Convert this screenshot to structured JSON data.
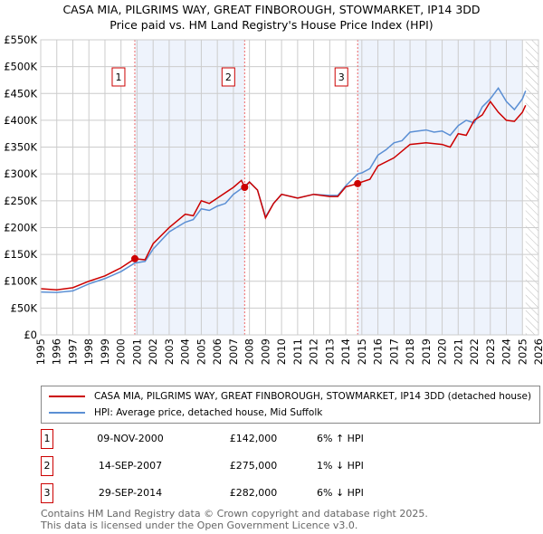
{
  "chart_data": {
    "type": "line",
    "title": "CASA MIA, PILGRIMS WAY, GREAT FINBOROUGH, STOWMARKET, IP14 3DD",
    "subtitle": "Price paid vs. HM Land Registry's House Price Index (HPI)",
    "xlim": [
      1995,
      2026
    ],
    "ylim": [
      0,
      550000
    ],
    "x_ticks": [
      "1995",
      "1996",
      "1997",
      "1998",
      "1999",
      "2000",
      "2001",
      "2002",
      "2003",
      "2004",
      "2005",
      "2006",
      "2007",
      "2008",
      "2009",
      "2010",
      "2011",
      "2012",
      "2013",
      "2014",
      "2015",
      "2016",
      "2017",
      "2018",
      "2019",
      "2020",
      "2021",
      "2022",
      "2023",
      "2024",
      "2025",
      "2026"
    ],
    "y_ticks": [
      {
        "v": 0,
        "l": "£0"
      },
      {
        "v": 50000,
        "l": "£50K"
      },
      {
        "v": 100000,
        "l": "£100K"
      },
      {
        "v": 150000,
        "l": "£150K"
      },
      {
        "v": 200000,
        "l": "£200K"
      },
      {
        "v": 250000,
        "l": "£250K"
      },
      {
        "v": 300000,
        "l": "£300K"
      },
      {
        "v": 350000,
        "l": "£350K"
      },
      {
        "v": 400000,
        "l": "£400K"
      },
      {
        "v": 450000,
        "l": "£450K"
      },
      {
        "v": 500000,
        "l": "£500K"
      },
      {
        "v": 550000,
        "l": "£550K"
      }
    ],
    "grid": true,
    "shaded_ranges": [
      [
        2000.86,
        2007.7
      ],
      [
        2014.74,
        2025.0
      ]
    ],
    "hatched_from": 2025.2,
    "series": [
      {
        "name": "CASA MIA, PILGRIMS WAY, GREAT FINBOROUGH, STOWMARKET, IP14 3DD (detached house)",
        "color": "#cc0000",
        "x": [
          1995,
          1996,
          1997,
          1998,
          1999,
          2000,
          2000.86,
          2001.5,
          2002,
          2003,
          2004,
          2004.5,
          2005,
          2005.5,
          2006,
          2007,
          2007.5,
          2007.7,
          2008,
          2008.5,
          2009,
          2009.5,
          2010,
          2011,
          2012,
          2013,
          2013.5,
          2014,
          2014.74,
          2015,
          2015.5,
          2016,
          2017,
          2018,
          2019,
          2020,
          2020.5,
          2021,
          2021.5,
          2022,
          2022.5,
          2023,
          2023.5,
          2024,
          2024.5,
          2025,
          2025.2
        ],
        "y": [
          86000,
          84000,
          88000,
          100000,
          110000,
          125000,
          142000,
          140000,
          170000,
          200000,
          225000,
          222000,
          250000,
          245000,
          255000,
          275000,
          288000,
          275000,
          285000,
          270000,
          218000,
          245000,
          262000,
          255000,
          262000,
          258000,
          258000,
          276000,
          282000,
          285000,
          290000,
          315000,
          330000,
          355000,
          358000,
          355000,
          350000,
          375000,
          372000,
          400000,
          410000,
          435000,
          415000,
          400000,
          398000,
          415000,
          428000
        ]
      },
      {
        "name": "HPI: Average price, detached house, Mid Suffolk",
        "color": "#5b8fd4",
        "x": [
          1995,
          1996,
          1997,
          1998,
          1999,
          2000,
          2000.86,
          2001.5,
          2002,
          2003,
          2004,
          2004.5,
          2005,
          2005.5,
          2006,
          2006.5,
          2007,
          2007.7,
          2008,
          2008.5,
          2009,
          2009.5,
          2010,
          2011,
          2012,
          2013,
          2013.5,
          2014,
          2014.74,
          2015,
          2015.5,
          2016,
          2016.5,
          2017,
          2017.5,
          2018,
          2018.5,
          2019,
          2019.5,
          2020,
          2020.5,
          2021,
          2021.5,
          2022,
          2022.5,
          2023,
          2023.5,
          2024,
          2024.5,
          2025,
          2025.2
        ],
        "y": [
          80000,
          79000,
          82000,
          95000,
          105000,
          118000,
          134000,
          137000,
          160000,
          192000,
          210000,
          215000,
          235000,
          232000,
          240000,
          245000,
          262000,
          277000,
          285000,
          270000,
          220000,
          245000,
          262000,
          255000,
          262000,
          260000,
          260000,
          278000,
          300000,
          302000,
          310000,
          335000,
          345000,
          358000,
          362000,
          378000,
          380000,
          382000,
          378000,
          380000,
          372000,
          390000,
          400000,
          395000,
          425000,
          440000,
          460000,
          435000,
          420000,
          440000,
          455000
        ]
      }
    ],
    "sales": [
      {
        "n": "1",
        "x": 2000.86,
        "y": 142000
      },
      {
        "n": "2",
        "x": 2007.7,
        "y": 275000
      },
      {
        "n": "3",
        "x": 2014.74,
        "y": 282000
      }
    ]
  },
  "legend": {
    "red": "CASA MIA, PILGRIMS WAY, GREAT FINBOROUGH, STOWMARKET, IP14 3DD (detached house)",
    "blue": "HPI: Average price, detached house, Mid Suffolk"
  },
  "transactions": [
    {
      "n": "1",
      "date": "09-NOV-2000",
      "price": "£142,000",
      "hpi": "6% ↑ HPI"
    },
    {
      "n": "2",
      "date": "14-SEP-2007",
      "price": "£275,000",
      "hpi": "1% ↓ HPI"
    },
    {
      "n": "3",
      "date": "29-SEP-2014",
      "price": "£282,000",
      "hpi": "6% ↓ HPI"
    }
  ],
  "footer": {
    "line1": "Contains HM Land Registry data © Crown copyright and database right 2025.",
    "line2": "This data is licensed under the Open Government Licence v3.0."
  }
}
